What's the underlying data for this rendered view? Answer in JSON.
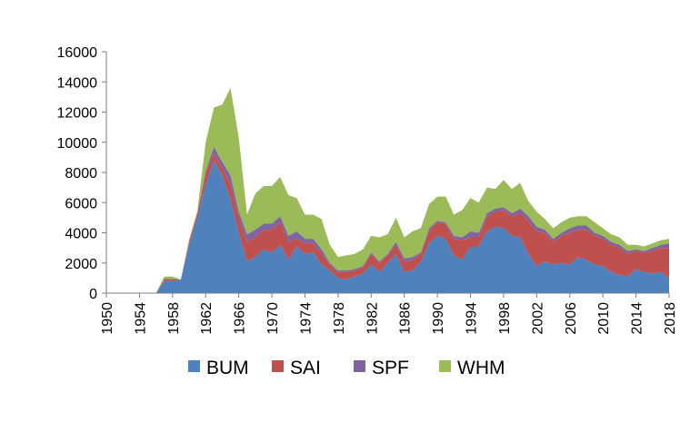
{
  "chart_data": {
    "type": "area",
    "stacked": true,
    "title": "",
    "xlabel": "",
    "ylabel": "",
    "ylim": [
      0,
      16000
    ],
    "yticks": [
      0,
      2000,
      4000,
      6000,
      8000,
      10000,
      12000,
      14000,
      16000
    ],
    "xlim": [
      1950,
      2018
    ],
    "xticks": [
      1950,
      1954,
      1958,
      1962,
      1966,
      1970,
      1974,
      1978,
      1982,
      1986,
      1990,
      1994,
      1998,
      2002,
      2006,
      2010,
      2014,
      2018
    ],
    "grid": false,
    "legend": "bottom",
    "x": [
      1950,
      1951,
      1952,
      1953,
      1954,
      1955,
      1956,
      1957,
      1958,
      1959,
      1960,
      1961,
      1962,
      1963,
      1964,
      1965,
      1966,
      1967,
      1968,
      1969,
      1970,
      1971,
      1972,
      1973,
      1974,
      1975,
      1976,
      1977,
      1978,
      1979,
      1980,
      1981,
      1982,
      1983,
      1984,
      1985,
      1986,
      1987,
      1988,
      1989,
      1990,
      1991,
      1992,
      1993,
      1994,
      1995,
      1996,
      1997,
      1998,
      1999,
      2000,
      2001,
      2002,
      2003,
      2004,
      2005,
      2006,
      2007,
      2008,
      2009,
      2010,
      2011,
      2012,
      2013,
      2014,
      2015,
      2016,
      2017,
      2018
    ],
    "series": [
      {
        "name": "BUM",
        "color": "#4f81bd",
        "values": [
          0,
          0,
          0,
          0,
          0,
          0,
          0,
          800,
          800,
          900,
          3200,
          5000,
          7200,
          8800,
          7800,
          6200,
          4000,
          2100,
          2400,
          2900,
          2700,
          3200,
          2200,
          3100,
          2600,
          2700,
          1900,
          1500,
          1000,
          900,
          1100,
          1300,
          1900,
          1400,
          2000,
          2600,
          1400,
          1500,
          2100,
          3300,
          3800,
          3600,
          2500,
          2200,
          3100,
          3100,
          4100,
          4400,
          4300,
          3800,
          3700,
          2600,
          1800,
          2100,
          1900,
          2000,
          1900,
          2400,
          2200,
          1900,
          1800,
          1400,
          1200,
          1100,
          1600,
          1400,
          1300,
          1400,
          1000
        ]
      },
      {
        "name": "SAI",
        "color": "#c0504d",
        "values": [
          0,
          0,
          0,
          0,
          0,
          0,
          0,
          100,
          100,
          0,
          200,
          300,
          700,
          500,
          500,
          1000,
          1000,
          1300,
          1300,
          1300,
          1500,
          1500,
          1200,
          500,
          700,
          600,
          700,
          400,
          400,
          500,
          400,
          400,
          700,
          600,
          500,
          600,
          700,
          700,
          500,
          800,
          900,
          1000,
          1100,
          1300,
          600,
          600,
          1000,
          1000,
          1200,
          1300,
          1600,
          2200,
          2300,
          1900,
          1500,
          1800,
          2100,
          1800,
          2000,
          1900,
          1800,
          1800,
          1800,
          1500,
          1200,
          1300,
          1500,
          1600,
          2000
        ]
      },
      {
        "name": "SPF",
        "color": "#8064a2",
        "values": [
          0,
          0,
          0,
          0,
          0,
          0,
          0,
          50,
          50,
          0,
          50,
          50,
          200,
          400,
          400,
          600,
          400,
          500,
          500,
          400,
          400,
          400,
          400,
          500,
          300,
          300,
          300,
          100,
          100,
          100,
          100,
          100,
          100,
          100,
          100,
          200,
          200,
          200,
          100,
          200,
          100,
          100,
          200,
          200,
          400,
          300,
          200,
          200,
          200,
          200,
          300,
          300,
          300,
          200,
          200,
          200,
          300,
          300,
          300,
          200,
          200,
          200,
          200,
          200,
          100,
          100,
          200,
          200,
          300
        ]
      },
      {
        "name": "WHM",
        "color": "#9bbb59",
        "values": [
          0,
          0,
          0,
          0,
          0,
          0,
          0,
          150,
          150,
          0,
          100,
          100,
          1900,
          2600,
          3800,
          5800,
          4900,
          1300,
          2400,
          2500,
          2500,
          2600,
          2700,
          2200,
          1600,
          1600,
          2000,
          1200,
          900,
          1000,
          1000,
          1100,
          1100,
          1600,
          1300,
          1600,
          1400,
          1700,
          1600,
          1600,
          1600,
          1700,
          1400,
          1800,
          2200,
          2000,
          1700,
          1300,
          1800,
          1600,
          1700,
          1000,
          1000,
          700,
          700,
          700,
          700,
          600,
          600,
          700,
          500,
          500,
          500,
          400,
          300,
          300,
          300,
          300,
          300
        ]
      }
    ]
  }
}
